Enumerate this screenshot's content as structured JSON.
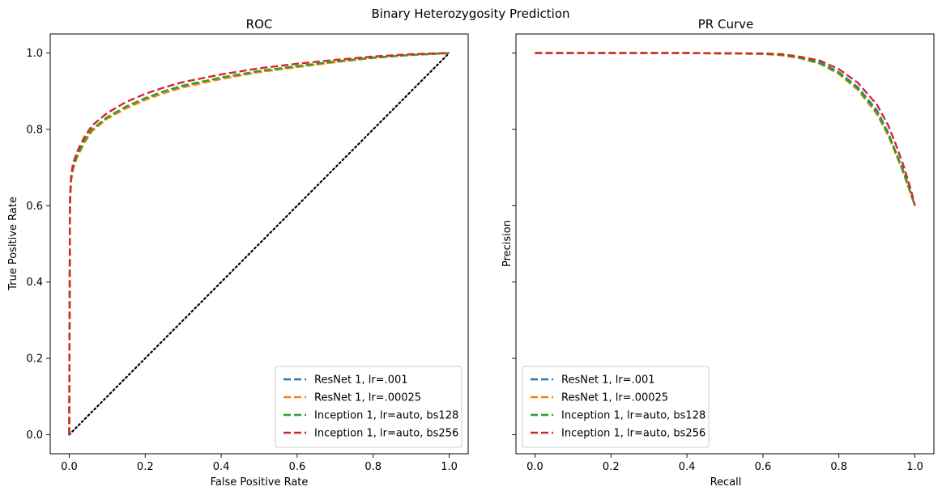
{
  "figure": {
    "suptitle": "Binary Heterozygosity Prediction"
  },
  "chart_data": [
    {
      "type": "line",
      "title": "ROC",
      "xlabel": "False Positive Rate",
      "ylabel": "True Positive Rate",
      "xlim": [
        -0.05,
        1.05
      ],
      "ylim": [
        -0.05,
        1.05
      ],
      "xticks": [
        "0.0",
        "0.2",
        "0.4",
        "0.6",
        "0.8",
        "1.0"
      ],
      "yticks": [
        "0.0",
        "0.2",
        "0.4",
        "0.6",
        "0.8",
        "1.0"
      ],
      "grid": false,
      "legend_position": "lower right",
      "reference_line": {
        "x": [
          0,
          1
        ],
        "y": [
          0,
          1
        ],
        "style": "dotted",
        "color": "#000000"
      },
      "series": [
        {
          "name": "ResNet 1, lr=.001",
          "color": "#1f77b4",
          "x": [
            0,
            0.002,
            0.005,
            0.01,
            0.02,
            0.04,
            0.06,
            0.1,
            0.15,
            0.2,
            0.25,
            0.3,
            0.4,
            0.5,
            0.6,
            0.7,
            0.8,
            0.9,
            1.0
          ],
          "y": [
            0,
            0.6,
            0.67,
            0.7,
            0.73,
            0.77,
            0.8,
            0.83,
            0.86,
            0.88,
            0.9,
            0.915,
            0.935,
            0.952,
            0.965,
            0.977,
            0.988,
            0.995,
            1.0
          ]
        },
        {
          "name": "ResNet 1, lr=.00025",
          "color": "#ff7f0e",
          "x": [
            0,
            0.002,
            0.005,
            0.01,
            0.02,
            0.04,
            0.06,
            0.1,
            0.15,
            0.2,
            0.25,
            0.3,
            0.4,
            0.5,
            0.6,
            0.7,
            0.8,
            0.9,
            1.0
          ],
          "y": [
            0,
            0.6,
            0.665,
            0.695,
            0.725,
            0.765,
            0.795,
            0.828,
            0.855,
            0.877,
            0.895,
            0.91,
            0.932,
            0.95,
            0.963,
            0.976,
            0.987,
            0.995,
            1.0
          ]
        },
        {
          "name": "Inception 1, lr=auto, bs128",
          "color": "#2ca02c",
          "x": [
            0,
            0.002,
            0.005,
            0.01,
            0.02,
            0.04,
            0.06,
            0.1,
            0.15,
            0.2,
            0.25,
            0.3,
            0.4,
            0.5,
            0.6,
            0.7,
            0.8,
            0.9,
            1.0
          ],
          "y": [
            0,
            0.61,
            0.67,
            0.7,
            0.73,
            0.77,
            0.8,
            0.832,
            0.86,
            0.882,
            0.9,
            0.914,
            0.936,
            0.953,
            0.966,
            0.978,
            0.988,
            0.995,
            1.0
          ]
        },
        {
          "name": "Inception 1, lr=auto, bs256",
          "color": "#d62728",
          "x": [
            0,
            0.002,
            0.005,
            0.01,
            0.02,
            0.04,
            0.06,
            0.1,
            0.15,
            0.2,
            0.25,
            0.3,
            0.4,
            0.5,
            0.6,
            0.7,
            0.8,
            0.9,
            1.0
          ],
          "y": [
            0,
            0.62,
            0.68,
            0.71,
            0.74,
            0.78,
            0.81,
            0.843,
            0.872,
            0.893,
            0.91,
            0.924,
            0.944,
            0.96,
            0.972,
            0.982,
            0.991,
            0.997,
            1.0
          ]
        }
      ]
    },
    {
      "type": "line",
      "title": "PR Curve",
      "xlabel": "Recall",
      "ylabel": "Precision",
      "xlim": [
        -0.05,
        1.05
      ],
      "ylim": [
        -0.05,
        1.05
      ],
      "xticks": [
        "0.0",
        "0.2",
        "0.4",
        "0.6",
        "0.8",
        "1.0"
      ],
      "grid": false,
      "legend_position": "lower left",
      "series": [
        {
          "name": "ResNet 1, lr=.001",
          "color": "#1f77b4",
          "x": [
            0,
            0.2,
            0.4,
            0.6,
            0.65,
            0.7,
            0.75,
            0.8,
            0.85,
            0.9,
            0.93,
            0.95,
            0.97,
            0.99,
            1.0
          ],
          "y": [
            1.0,
            1.0,
            1.0,
            0.998,
            0.995,
            0.988,
            0.975,
            0.95,
            0.91,
            0.85,
            0.79,
            0.74,
            0.69,
            0.63,
            0.6
          ]
        },
        {
          "name": "ResNet 1, lr=.00025",
          "color": "#ff7f0e",
          "x": [
            0,
            0.2,
            0.4,
            0.6,
            0.65,
            0.7,
            0.75,
            0.8,
            0.85,
            0.9,
            0.93,
            0.95,
            0.97,
            0.99,
            1.0
          ],
          "y": [
            1.0,
            1.0,
            1.0,
            0.998,
            0.994,
            0.986,
            0.972,
            0.945,
            0.903,
            0.84,
            0.783,
            0.735,
            0.685,
            0.628,
            0.6
          ]
        },
        {
          "name": "Inception 1, lr=auto, bs128",
          "color": "#2ca02c",
          "x": [
            0,
            0.2,
            0.4,
            0.6,
            0.65,
            0.7,
            0.75,
            0.8,
            0.85,
            0.9,
            0.93,
            0.95,
            0.97,
            0.99,
            1.0
          ],
          "y": [
            1.0,
            1.0,
            1.0,
            0.998,
            0.995,
            0.987,
            0.973,
            0.948,
            0.907,
            0.845,
            0.788,
            0.738,
            0.688,
            0.63,
            0.6
          ]
        },
        {
          "name": "Inception 1, lr=auto, bs256",
          "color": "#d62728",
          "x": [
            0,
            0.2,
            0.4,
            0.6,
            0.65,
            0.7,
            0.75,
            0.8,
            0.85,
            0.9,
            0.93,
            0.95,
            0.97,
            0.99,
            1.0
          ],
          "y": [
            1.0,
            1.0,
            1.0,
            0.999,
            0.997,
            0.99,
            0.98,
            0.958,
            0.922,
            0.865,
            0.81,
            0.76,
            0.705,
            0.64,
            0.6
          ]
        }
      ]
    }
  ]
}
